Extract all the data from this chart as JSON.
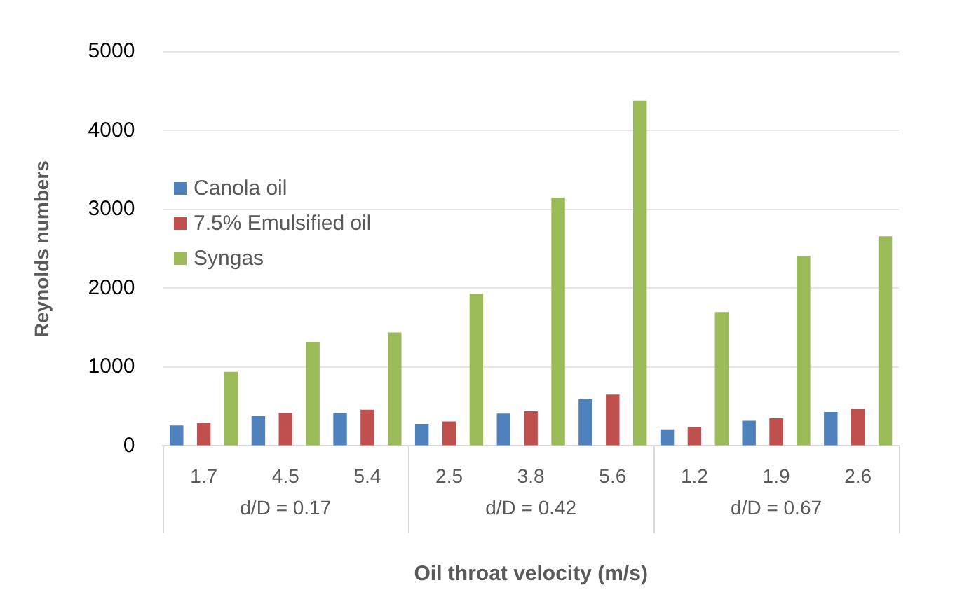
{
  "chart_data": {
    "type": "bar",
    "xlabel": "Oil throat velocity (m/s)",
    "ylabel": "Reynolds numbers",
    "categories": [
      "1.7",
      "4.5",
      "5.4",
      "2.5",
      "3.8",
      "5.6",
      "1.2",
      "1.9",
      "2.6"
    ],
    "series": [
      {
        "name": "Canola oil",
        "color": "#4f81bd",
        "values": [
          260,
          380,
          420,
          280,
          410,
          590,
          210,
          320,
          430
        ]
      },
      {
        "name": "7.5% Emulsified oil",
        "color": "#c0504d",
        "values": [
          290,
          420,
          460,
          310,
          440,
          650,
          240,
          350,
          470
        ]
      },
      {
        "name": "Syngas",
        "color": "#9bbb59",
        "values": [
          940,
          1320,
          1440,
          1930,
          3150,
          4380,
          1700,
          2410,
          2660
        ]
      }
    ],
    "annotations": [
      "d/D = 0.17",
      "d/D = 0.42",
      "d/D = 0.67"
    ],
    "ylim": [
      0,
      5000
    ],
    "yticks": [
      0,
      1000,
      2000,
      3000,
      4000,
      5000
    ],
    "grid": "y",
    "legend": "left"
  }
}
